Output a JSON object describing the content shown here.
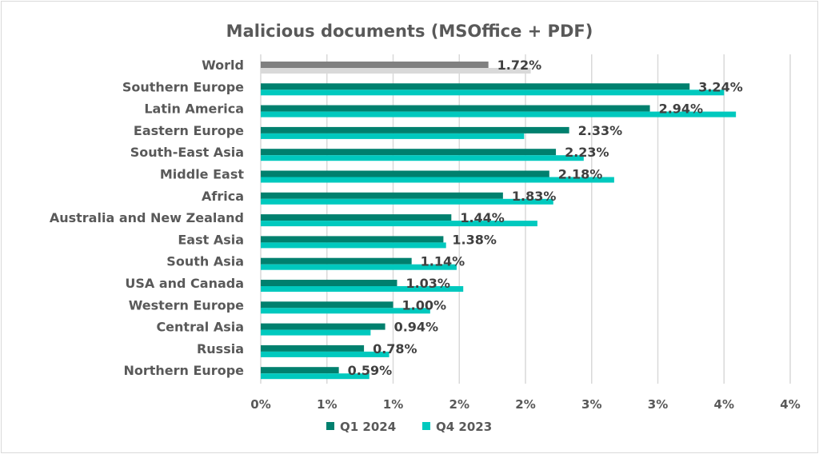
{
  "chart_data": {
    "type": "bar",
    "orientation": "horizontal",
    "title": "Malicious documents (MSOffice + PDF)",
    "xlabel": "",
    "ylabel": "",
    "xlim": [
      0,
      4
    ],
    "x_tick_values": [
      0,
      0.5,
      1,
      1.5,
      2,
      2.5,
      3,
      3.5,
      4
    ],
    "x_tick_labels": [
      "0%",
      "1%",
      "1%",
      "2%",
      "2%",
      "3%",
      "3%",
      "4%",
      "4%"
    ],
    "grid": "vertical",
    "legend_position": "bottom",
    "categories": [
      "World",
      "Southern Europe",
      "Latin America",
      "Eastern Europe",
      "South-East Asia",
      "Middle East",
      "Africa",
      "Australia and New Zealand",
      "East Asia",
      "South Asia",
      "USA and Canada",
      "Western Europe",
      "Central Asia",
      "Russia",
      "Northern Europe"
    ],
    "series": [
      {
        "name": "Q1 2024",
        "color": "#00806e",
        "highlight_color": "#808080",
        "values": [
          1.72,
          3.24,
          2.94,
          2.33,
          2.23,
          2.18,
          1.83,
          1.44,
          1.38,
          1.14,
          1.03,
          1.0,
          0.94,
          0.78,
          0.59
        ],
        "data_labels": [
          "1.72%",
          "3.24%",
          "2.94%",
          "2.33%",
          "2.23%",
          "2.18%",
          "1.83%",
          "1.44%",
          "1.38%",
          "1.14%",
          "1.03%",
          "1.00%",
          "0.94%",
          "0.78%",
          "0.59%"
        ]
      },
      {
        "name": "Q4 2023",
        "color": "#00c9be",
        "highlight_color": "#d9d9d9",
        "values": [
          2.04,
          3.5,
          3.59,
          1.99,
          2.44,
          2.67,
          2.21,
          2.09,
          1.4,
          1.48,
          1.53,
          1.28,
          0.83,
          0.97,
          0.82
        ]
      }
    ]
  }
}
